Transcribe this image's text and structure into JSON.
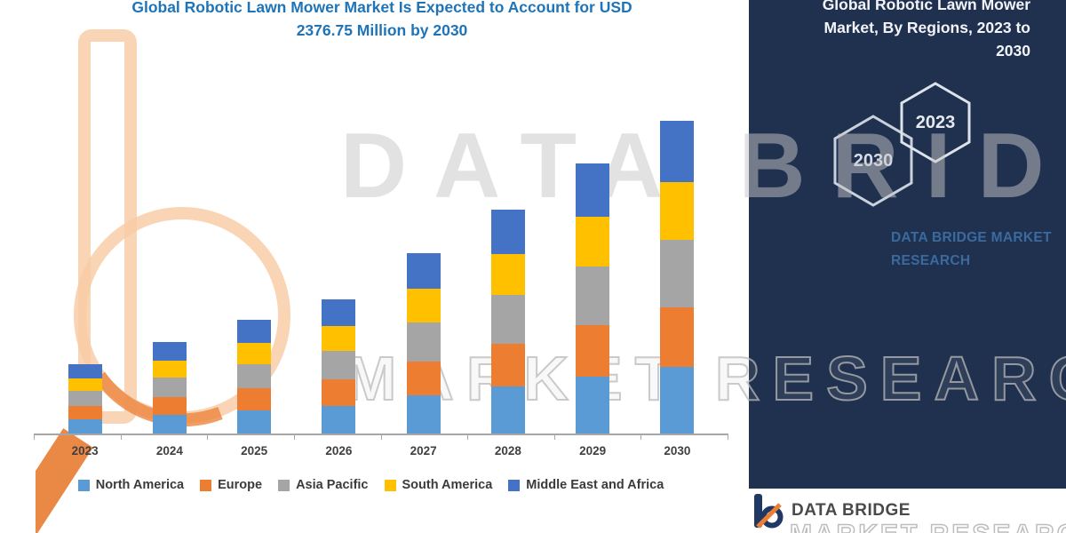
{
  "header": {
    "title_lines": [
      "Global Robotic Lawn Mower Market Is Expected to Account for USD",
      "2376.75 Million by 2030"
    ]
  },
  "watermarks": {
    "big_text": "DATA BRIDGE",
    "outline_text": "MARKET RESEARCH"
  },
  "right_panel": {
    "heading_lines": [
      "Global Robotic Lawn Mower",
      "Market, By Regions, 2023 to",
      "2030"
    ],
    "hexagons": [
      {
        "label": "2030"
      },
      {
        "label": "2023"
      }
    ],
    "caption_lines": [
      "DATA BRIDGE MARKET",
      "RESEARCH"
    ],
    "footer": {
      "brand": "DATA BRIDGE",
      "sub": "MARKET RESEARCH"
    },
    "background": "#20304F"
  },
  "chart_data": {
    "type": "bar",
    "stacked": true,
    "title": "Global Robotic Lawn Mower Market Is Expected to Account for USD 2376.75 Million by 2030",
    "values_unit": "USD Million",
    "categories": [
      "2023",
      "2024",
      "2025",
      "2026",
      "2027",
      "2028",
      "2029",
      "2030"
    ],
    "series": [
      {
        "name": "North America",
        "color": "#5B9BD5",
        "values": [
          120,
          155,
          190,
          225,
          300,
          370,
          445,
          515
        ]
      },
      {
        "name": "Europe",
        "color": "#ED7D31",
        "values": [
          100,
          135,
          165,
          195,
          260,
          325,
          390,
          455
        ]
      },
      {
        "name": "Asia Pacific",
        "color": "#A5A5A5",
        "values": [
          115,
          150,
          185,
          220,
          295,
          365,
          440,
          510
        ]
      },
      {
        "name": "South America",
        "color": "#FFC000",
        "values": [
          95,
          125,
          155,
          185,
          250,
          310,
          375,
          435
        ]
      },
      {
        "name": "Middle East and Africa",
        "color": "#4472C4",
        "values": [
          107,
          140,
          178,
          202,
          271,
          335,
          404,
          461.75
        ]
      }
    ],
    "totals": [
      537,
      705,
      873,
      1027,
      1376,
      1705,
      2054,
      2376.75
    ],
    "xlabel": "",
    "ylabel": "",
    "y_axis_visible": false,
    "legend_position": "bottom"
  }
}
